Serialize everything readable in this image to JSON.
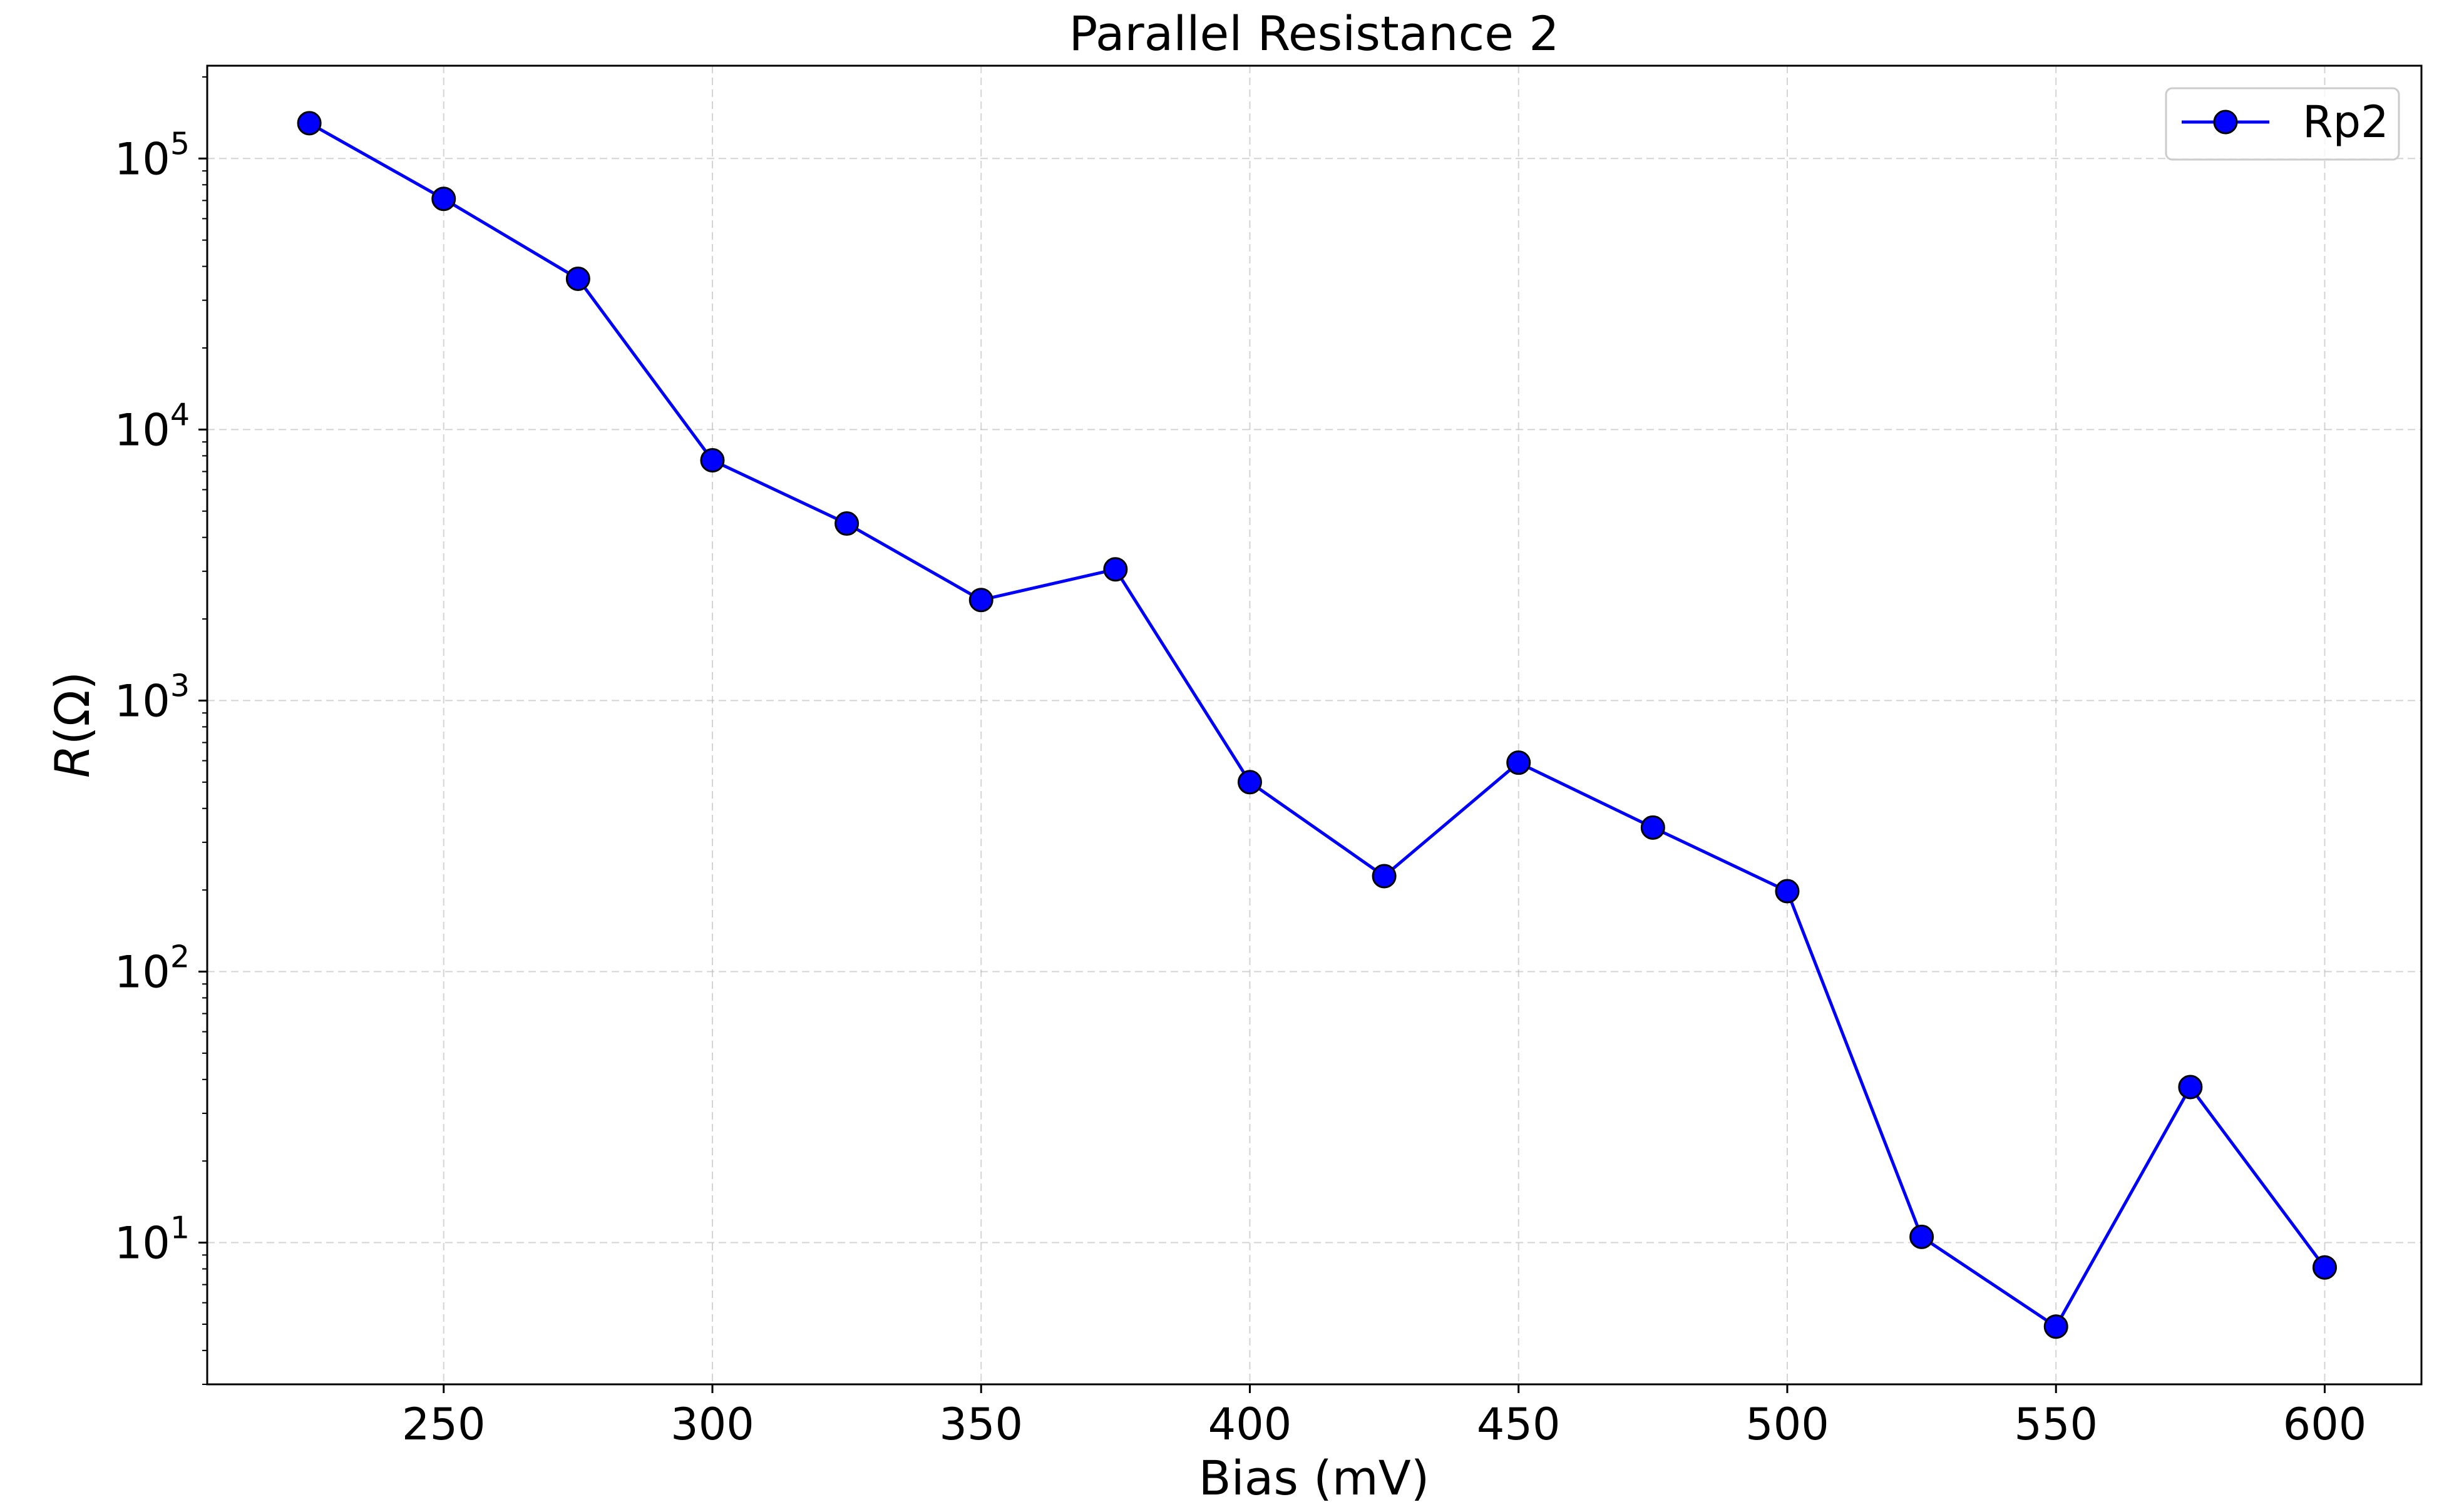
{
  "chart_data": {
    "type": "line",
    "title": "Parallel Resistance 2",
    "xlabel": "Bias (mV)",
    "ylabel_prefix": "R",
    "ylabel_suffix": "(Ω)",
    "y_scale": "log",
    "xlim": [
      206,
      618
    ],
    "ylim": [
      3.0,
      220000
    ],
    "x_ticks": [
      250,
      300,
      350,
      400,
      450,
      500,
      550,
      600
    ],
    "x_tick_labels": [
      "250",
      "300",
      "350",
      "400",
      "450",
      "500",
      "550",
      "600"
    ],
    "y_ticks": [
      10,
      100,
      1000,
      10000,
      100000
    ],
    "y_tick_labels": [
      {
        "base": "10",
        "exp": "1"
      },
      {
        "base": "10",
        "exp": "2"
      },
      {
        "base": "10",
        "exp": "3"
      },
      {
        "base": "10",
        "exp": "4"
      },
      {
        "base": "10",
        "exp": "5"
      }
    ],
    "grid": true,
    "legend_position": "top-right",
    "series": [
      {
        "name": "Rp2",
        "color": "#0000ff",
        "marker": "circle",
        "marker_edge_color": "#000000",
        "x": [
          225,
          250,
          275,
          300,
          325,
          350,
          375,
          400,
          425,
          450,
          475,
          500,
          525,
          550,
          575,
          600
        ],
        "y": [
          135000,
          71000,
          36000,
          7700,
          4500,
          2350,
          3050,
          500,
          225,
          590,
          340,
          198,
          10.5,
          4.9,
          37.5,
          8.1
        ]
      }
    ]
  }
}
